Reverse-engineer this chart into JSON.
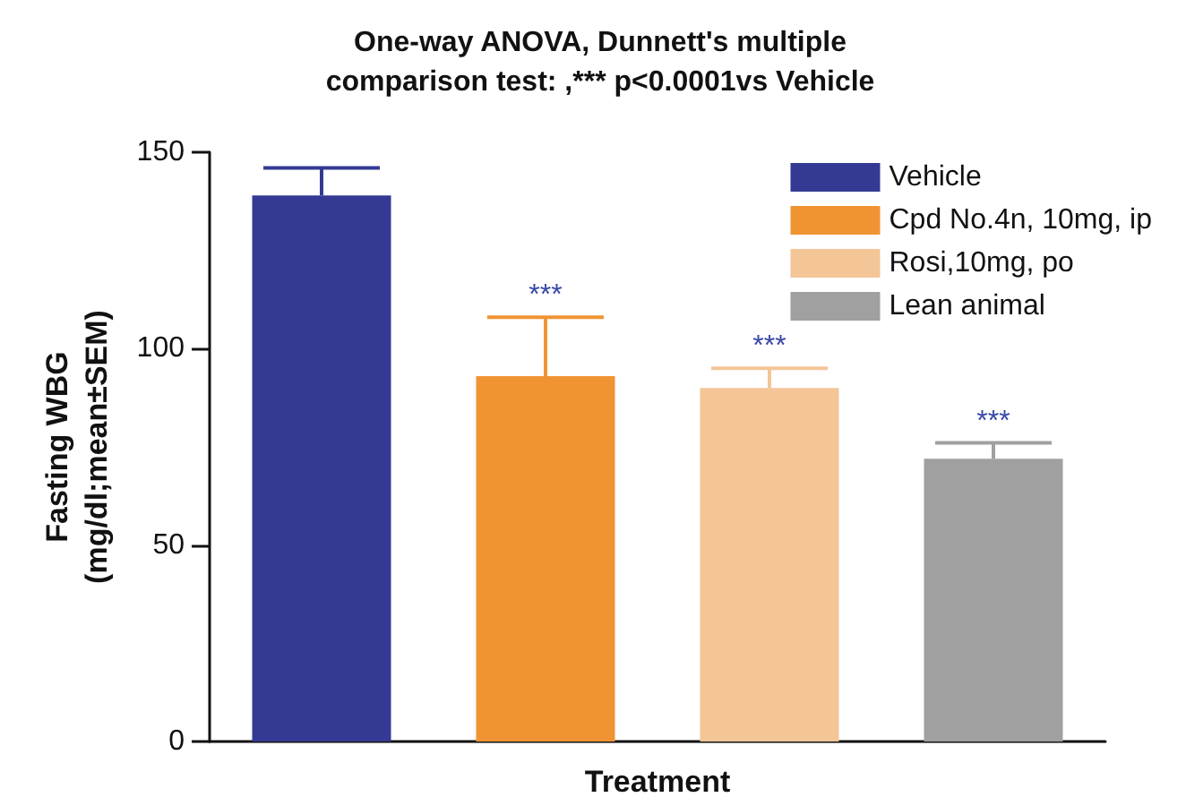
{
  "chart_data": {
    "type": "bar",
    "title": "One-way ANOVA, Dunnett's multiple\ncomparison test: ,*** p<0.0001vs Vehicle",
    "xlabel": "Treatment",
    "ylabel": "Fasting WBG\n(mg/dl;mean±SEM)",
    "categories": [
      null,
      null,
      null,
      null
    ],
    "series": [
      {
        "name": "Vehicle",
        "color": "#343a94",
        "values": [
          139,
          null,
          null,
          null
        ],
        "errors": [
          [
            139,
            146
          ],
          null,
          null,
          null
        ]
      },
      {
        "name": "Cpd No.4n, 10mg, ip",
        "color": "#f09433",
        "values": [
          null,
          93,
          null,
          null
        ],
        "errors": [
          null,
          [
            93,
            108
          ],
          null,
          null
        ],
        "value_labels": [
          null,
          "***",
          null,
          null
        ]
      },
      {
        "name": "Rosi,10mg, po",
        "color": "#f3c597",
        "values": [
          null,
          null,
          90,
          null
        ],
        "errors": [
          null,
          null,
          [
            90,
            95
          ],
          null
        ],
        "value_labels": [
          null,
          null,
          "***",
          null
        ]
      },
      {
        "name": "Lean animal",
        "color": "#a0a0a0",
        "values": [
          null,
          null,
          null,
          72
        ],
        "errors": [
          null,
          null,
          null,
          [
            72,
            76
          ]
        ],
        "value_labels": [
          null,
          null,
          null,
          "***"
        ]
      }
    ],
    "ylim": [
      0,
      150
    ],
    "yticks": [
      0,
      50,
      100,
      150
    ],
    "grid": false,
    "legend": "top right"
  }
}
